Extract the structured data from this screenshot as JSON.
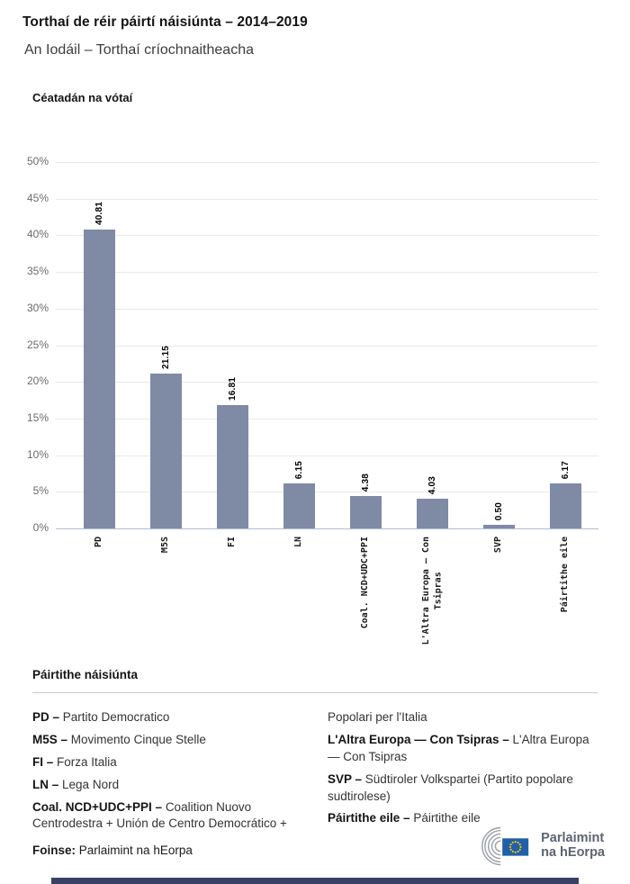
{
  "header": {
    "title": "Torthaí de réir páirtí náisiúnta – 2014–2019",
    "subtitle": "An Iodáil – Torthaí críochnaitheacha"
  },
  "chart_data": {
    "type": "bar",
    "title": "Céatadán na vótaí",
    "categories": [
      "PD",
      "M5S",
      "FI",
      "LN",
      "Coal. NCD+UDC+PPI",
      "L'Altra Europa — Con\nTsipras",
      "SVP",
      "Páirtithe eile"
    ],
    "values": [
      40.81,
      21.15,
      16.81,
      6.15,
      4.38,
      4.03,
      0.5,
      6.17
    ],
    "value_labels": [
      "40.81",
      "21.15",
      "16.81",
      "6.15",
      "4.38",
      "4.03",
      "0.50",
      "6.17"
    ],
    "xlabel": "",
    "ylabel": "Céatadán na vótaí",
    "ylim": [
      0,
      50
    ],
    "ytick_labels": [
      "0%",
      "5%",
      "10%",
      "15%",
      "20%",
      "25%",
      "30%",
      "35%",
      "40%",
      "45%",
      "50%"
    ],
    "grid": true,
    "legend_position": "none",
    "bar_color": "#7f8aa5"
  },
  "legend": {
    "title": "Páirtithe náisiúnta",
    "columns": [
      [
        {
          "b": "PD –",
          "t": "Partito Democratico"
        },
        {
          "b": "M5S –",
          "t": "Movimento Cinque Stelle"
        },
        {
          "b": "FI –",
          "t": "Forza Italia"
        },
        {
          "b": "LN –",
          "t": "Lega Nord"
        },
        {
          "b": "Coal. NCD+UDC+PPI –",
          "t": "Coalition Nuovo Centrodestra + Unión de Centro Democrático +"
        }
      ],
      [
        {
          "b": "",
          "t": "Popolari per l'Italia"
        },
        {
          "b": "L'Altra Europa — Con Tsipras –",
          "t": "L'Altra Europa — Con Tsipras"
        },
        {
          "b": "SVP –",
          "t": "Südtiroler Volkspartei (Partito popolare sudtirolese)"
        },
        {
          "b": "Páirtithe eile –",
          "t": "Páirtithe eile"
        }
      ]
    ]
  },
  "footer": {
    "source_label": "Foinse:",
    "source_text": "Parlaimint na hEorpa",
    "logo_line1": "Parlaimint",
    "logo_line2": "na hEorpa"
  },
  "colors": {
    "bar": "#7f8aa5",
    "grid": "#e9e9e9",
    "axis_baseline": "#b4bdd6",
    "tick_text": "#6b6b6b",
    "flag_blue": "#2160a8",
    "star_yellow": "#ffcc00",
    "hemicycle_gray": "#9aa1a8",
    "logo_text": "#5b6472",
    "bottom_bar": "#3a4065"
  }
}
